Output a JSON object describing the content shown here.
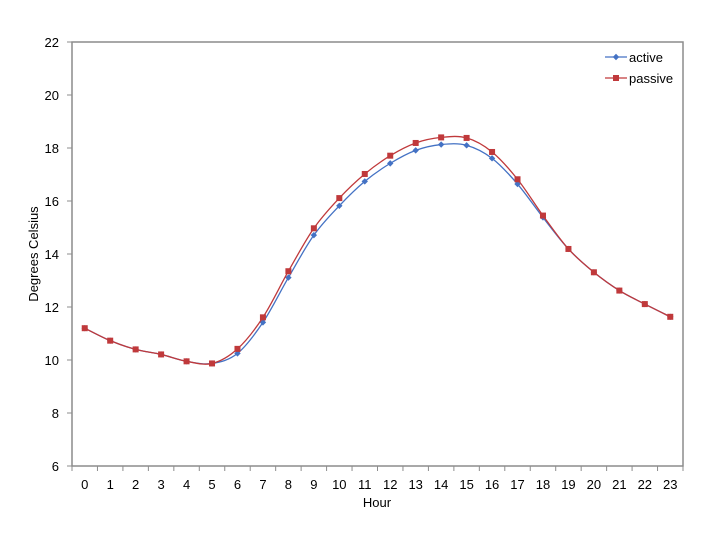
{
  "chart_data": {
    "type": "line",
    "title": "",
    "xlabel": "Hour",
    "ylabel": "Degrees Celsius",
    "ylim": [
      6,
      22
    ],
    "yticks": [
      6,
      8,
      10,
      12,
      14,
      16,
      18,
      20,
      22
    ],
    "categories": [
      "0",
      "1",
      "2",
      "3",
      "4",
      "5",
      "6",
      "7",
      "8",
      "9",
      "10",
      "11",
      "12",
      "13",
      "14",
      "15",
      "16",
      "17",
      "18",
      "19",
      "20",
      "21",
      "22",
      "23"
    ],
    "grid": false,
    "legend_position": "top-right",
    "smooth": true,
    "series": [
      {
        "name": "active",
        "color": "#4472C4",
        "marker": "diamond",
        "values": [
          11.2,
          10.73,
          10.4,
          10.21,
          9.95,
          9.87,
          10.25,
          11.42,
          13.11,
          14.71,
          15.82,
          16.74,
          17.42,
          17.91,
          18.13,
          18.1,
          17.61,
          16.64,
          15.38,
          14.19,
          13.31,
          12.62,
          12.11,
          11.63
        ]
      },
      {
        "name": "passive",
        "color": "#C0393B",
        "marker": "square",
        "values": [
          11.2,
          10.73,
          10.4,
          10.21,
          9.95,
          9.87,
          10.42,
          11.61,
          13.35,
          14.97,
          16.11,
          17.02,
          17.71,
          18.19,
          18.4,
          18.38,
          17.85,
          16.82,
          15.45,
          14.19,
          13.31,
          12.62,
          12.11,
          11.63
        ]
      }
    ]
  }
}
